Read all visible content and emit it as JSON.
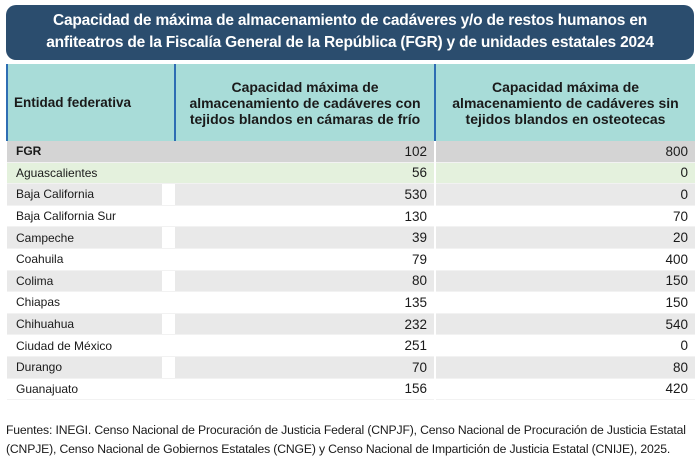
{
  "title": {
    "line1": "Capacidad de máxima de almacenamiento de cadáveres y/o de restos humanos en",
    "line2": "anfiteatros de la Fiscalía General de la República (FGR) y de unidades estatales 2024"
  },
  "table": {
    "headers": {
      "col1": "Entidad federativa",
      "col2": "Capacidad máxima de almacenamiento de cadáveres con tejidos blandos en cámaras de frío",
      "col3": "Capacidad máxima de almacenamiento de cadáveres sin tejidos blandos en osteotecas"
    },
    "rows": [
      {
        "entity": "FGR",
        "cold": "102",
        "bones": "800"
      },
      {
        "entity": "Aguascalientes",
        "cold": "56",
        "bones": "0"
      },
      {
        "entity": "Baja California",
        "cold": "530",
        "bones": "0"
      },
      {
        "entity": "Baja California Sur",
        "cold": "130",
        "bones": "70"
      },
      {
        "entity": "Campeche",
        "cold": "39",
        "bones": "20"
      },
      {
        "entity": "Coahuila",
        "cold": "79",
        "bones": "400"
      },
      {
        "entity": "Colima",
        "cold": "80",
        "bones": "150"
      },
      {
        "entity": "Chiapas",
        "cold": "135",
        "bones": "150"
      },
      {
        "entity": "Chihuahua",
        "cold": "232",
        "bones": "540"
      },
      {
        "entity": "Ciudad de México",
        "cold": "251",
        "bones": "0"
      },
      {
        "entity": "Durango",
        "cold": "70",
        "bones": "80"
      },
      {
        "entity": "Guanajuato",
        "cold": "156",
        "bones": "420"
      }
    ]
  },
  "sources": {
    "line1": "Fuentes: INEGI. Censo Nacional de Procuración de Justicia Federal (CNPJF), Censo Nacional de Procuración de Justicia Estatal",
    "line2": "(CNPJE), Censo Nacional de Gobiernos Estatales (CNGE) y Censo Nacional de Impartición de Justicia Estatal (CNIJE), 2025."
  }
}
